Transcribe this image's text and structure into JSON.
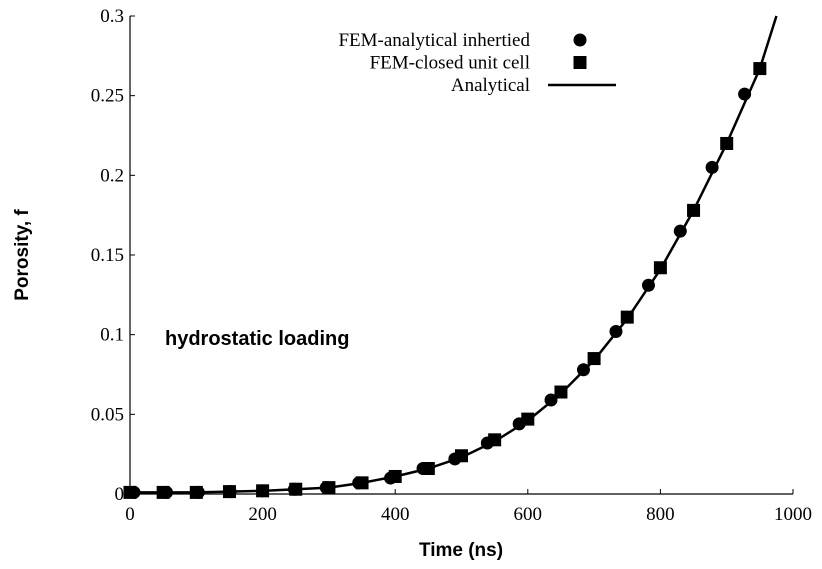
{
  "chart_data": {
    "type": "scatter",
    "x_label": "Time (ns)",
    "y_label": "Porosity, f",
    "annotation": "hydrostatic loading",
    "xlim": [
      0,
      1000
    ],
    "xticks": [
      0,
      200,
      400,
      600,
      800,
      1000
    ],
    "ylim": [
      0,
      0.3
    ],
    "yticks": [
      0,
      0.05,
      0.1,
      0.15,
      0.2,
      0.25,
      0.3
    ],
    "series": [
      {
        "name": "FEM-analytical inhertied",
        "color": "#000000",
        "marker": "circle",
        "x": [
          6,
          55,
          103,
          151,
          200,
          248,
          296,
          345,
          393,
          442,
          490,
          539,
          587,
          635,
          684,
          733,
          782,
          830,
          878,
          927
        ],
        "values": [
          0.001,
          0.001,
          0.001,
          0.0015,
          0.002,
          0.003,
          0.004,
          0.007,
          0.01,
          0.016,
          0.022,
          0.032,
          0.044,
          0.059,
          0.078,
          0.102,
          0.131,
          0.165,
          0.205,
          0.251
        ]
      },
      {
        "name": "FEM-closed unit cell",
        "color": "#000000",
        "marker": "square",
        "x": [
          0,
          50,
          100,
          150,
          200,
          250,
          300,
          350,
          400,
          450,
          500,
          550,
          600,
          650,
          700,
          750,
          800,
          850,
          900,
          950
        ],
        "values": [
          0.001,
          0.001,
          0.001,
          0.0015,
          0.002,
          0.003,
          0.004,
          0.007,
          0.011,
          0.016,
          0.024,
          0.034,
          0.047,
          0.064,
          0.085,
          0.111,
          0.142,
          0.178,
          0.22,
          0.267
        ]
      },
      {
        "name": "Analytical",
        "color": "#000000",
        "marker": "line",
        "x": [
          0,
          50,
          100,
          150,
          200,
          250,
          300,
          350,
          400,
          450,
          500,
          550,
          600,
          650,
          700,
          750,
          800,
          850,
          900,
          950,
          975
        ],
        "values": [
          0.001,
          0.001,
          0.001,
          0.0015,
          0.002,
          0.003,
          0.004,
          0.007,
          0.011,
          0.016,
          0.023,
          0.033,
          0.046,
          0.063,
          0.084,
          0.11,
          0.141,
          0.178,
          0.22,
          0.267,
          0.3
        ]
      }
    ]
  }
}
